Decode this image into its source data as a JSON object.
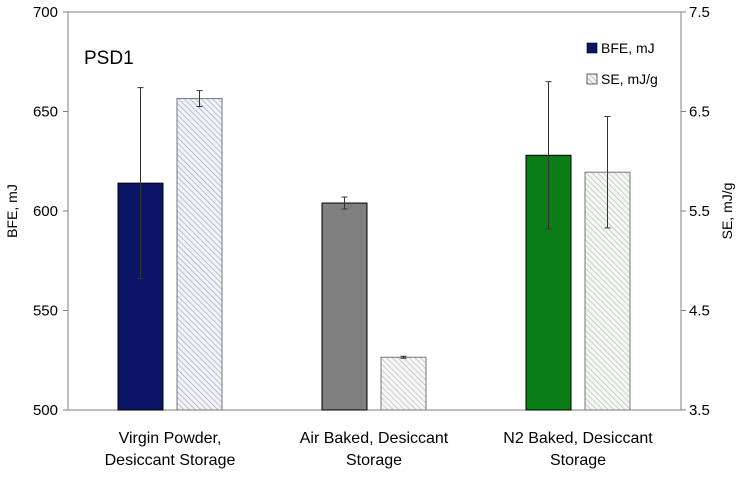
{
  "chart_data": {
    "type": "bar",
    "title": "",
    "panel_label": "PSD1",
    "categories": [
      [
        "Virgin Powder,",
        "Desiccant Storage"
      ],
      [
        "Air Baked, Desiccant",
        "Storage"
      ],
      [
        "N2 Baked, Desiccant",
        "Storage"
      ]
    ],
    "left_axis": {
      "label": "BFE, mJ",
      "ylim": [
        500,
        700
      ],
      "ticks": [
        "500",
        "550",
        "600",
        "650",
        "700"
      ],
      "tick_values": [
        500,
        550,
        600,
        650,
        700
      ]
    },
    "right_axis": {
      "label": "SE, mJ/g",
      "ylim": [
        3.5,
        7.5
      ],
      "ticks": [
        "3.5",
        "4.5",
        "5.5",
        "6.5",
        "7.5"
      ],
      "tick_values": [
        3.5,
        4.5,
        5.5,
        6.5,
        7.5
      ]
    },
    "series": [
      {
        "name": "BFE, mJ",
        "axis": "left",
        "values": [
          614,
          604,
          628
        ],
        "errors": [
          48,
          3,
          37
        ],
        "colors": [
          "#0c1466",
          "#808080",
          "#0a7d16"
        ]
      },
      {
        "name": "SE, mJ/g",
        "axis": "right",
        "values": [
          6.63,
          4.03,
          5.89
        ],
        "errors": [
          0.08,
          0.01,
          0.56
        ],
        "colors": [
          "#eceef3",
          "#f0f0f0",
          "#eef3ee"
        ]
      }
    ],
    "legend": {
      "position": "top-right",
      "entries": [
        "BFE, mJ",
        "SE, mJ/g"
      ]
    },
    "grid": false
  }
}
